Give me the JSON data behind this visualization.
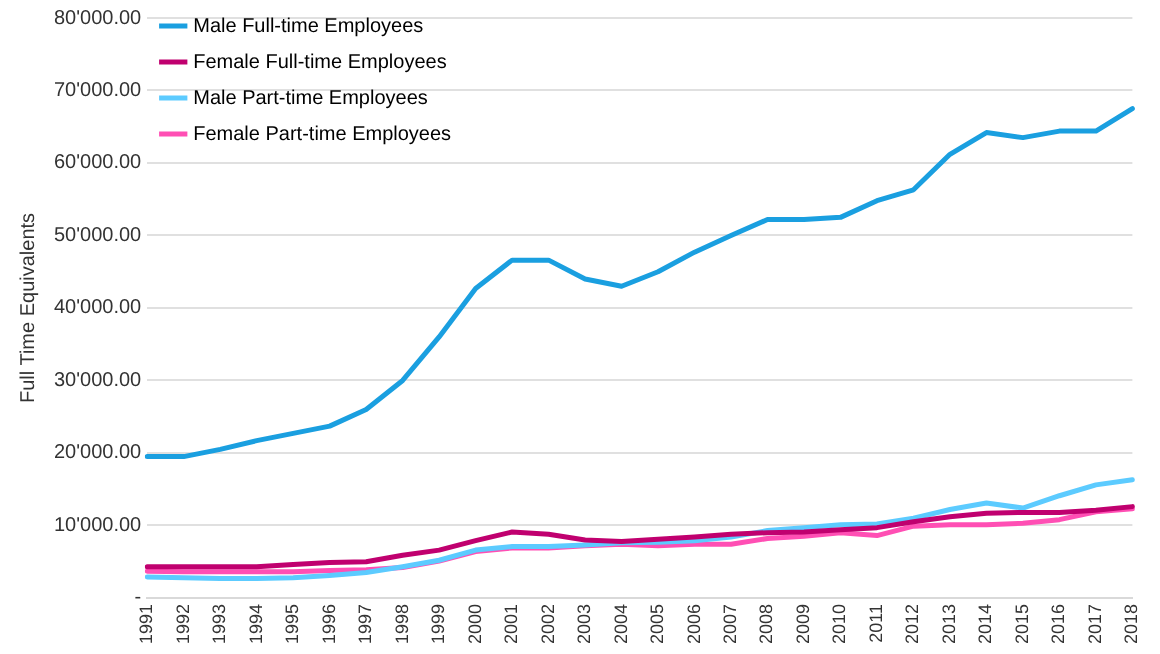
{
  "chart_data": {
    "type": "line",
    "ylabel": "Full Time Equivalents",
    "categories": [
      "1991",
      "1992",
      "1993",
      "1994",
      "1995",
      "1996",
      "1997",
      "1998",
      "1999",
      "2000",
      "2001",
      "2002",
      "2003",
      "2004",
      "2005",
      "2006",
      "2007",
      "2008",
      "2009",
      "2010",
      "2011",
      "2012",
      "2013",
      "2014",
      "2015",
      "2016",
      "2017",
      "2018"
    ],
    "series": [
      {
        "name": "Male Full-time Employees",
        "color": "#1a9fe0",
        "values": [
          19500,
          19500,
          20500,
          21700,
          22700,
          23700,
          26000,
          30000,
          36000,
          42700,
          46600,
          46600,
          44000,
          43000,
          45000,
          47700,
          50000,
          52200,
          52200,
          52500,
          54800,
          56300,
          61200,
          64200,
          63500,
          64400,
          64400,
          67500
        ]
      },
      {
        "name": "Female Full-time Employees",
        "color": "#c0006f",
        "values": [
          4300,
          4300,
          4300,
          4300,
          4600,
          4900,
          5000,
          5900,
          6600,
          7900,
          9100,
          8800,
          8000,
          7800,
          8100,
          8400,
          8800,
          9000,
          9100,
          9400,
          9700,
          10500,
          11200,
          11700,
          11800,
          11800,
          12100,
          12600
        ]
      },
      {
        "name": "Male Part-time Employees",
        "color": "#5ccbff",
        "values": [
          2900,
          2800,
          2700,
          2700,
          2800,
          3100,
          3500,
          4300,
          5200,
          6600,
          7100,
          7100,
          7300,
          7600,
          7700,
          7900,
          8400,
          9300,
          9700,
          10100,
          10200,
          11000,
          12200,
          13100,
          12400,
          14100,
          15600,
          16300
        ]
      },
      {
        "name": "Female Part-time Employees",
        "color": "#ff4fb4",
        "values": [
          3700,
          3600,
          3600,
          3600,
          3600,
          3800,
          3900,
          4200,
          5100,
          6400,
          6900,
          6900,
          7200,
          7400,
          7200,
          7400,
          7400,
          8200,
          8500,
          9000,
          8600,
          9900,
          10100,
          10100,
          10300,
          10800,
          11900,
          12300
        ]
      }
    ],
    "ylim": [
      0,
      80000
    ],
    "yticks": [
      {
        "value": 0,
        "label": "-"
      },
      {
        "value": 10000,
        "label": "10'000.00"
      },
      {
        "value": 20000,
        "label": "20'000.00"
      },
      {
        "value": 30000,
        "label": "30'000.00"
      },
      {
        "value": 40000,
        "label": "40'000.00"
      },
      {
        "value": 50000,
        "label": "50'000.00"
      },
      {
        "value": 60000,
        "label": "60'000.00"
      },
      {
        "value": 70000,
        "label": "70'000.00"
      },
      {
        "value": 80000,
        "label": "80'000.00"
      }
    ],
    "grid": "y",
    "legend": "top left",
    "marker": "none",
    "line_style": "solid"
  }
}
